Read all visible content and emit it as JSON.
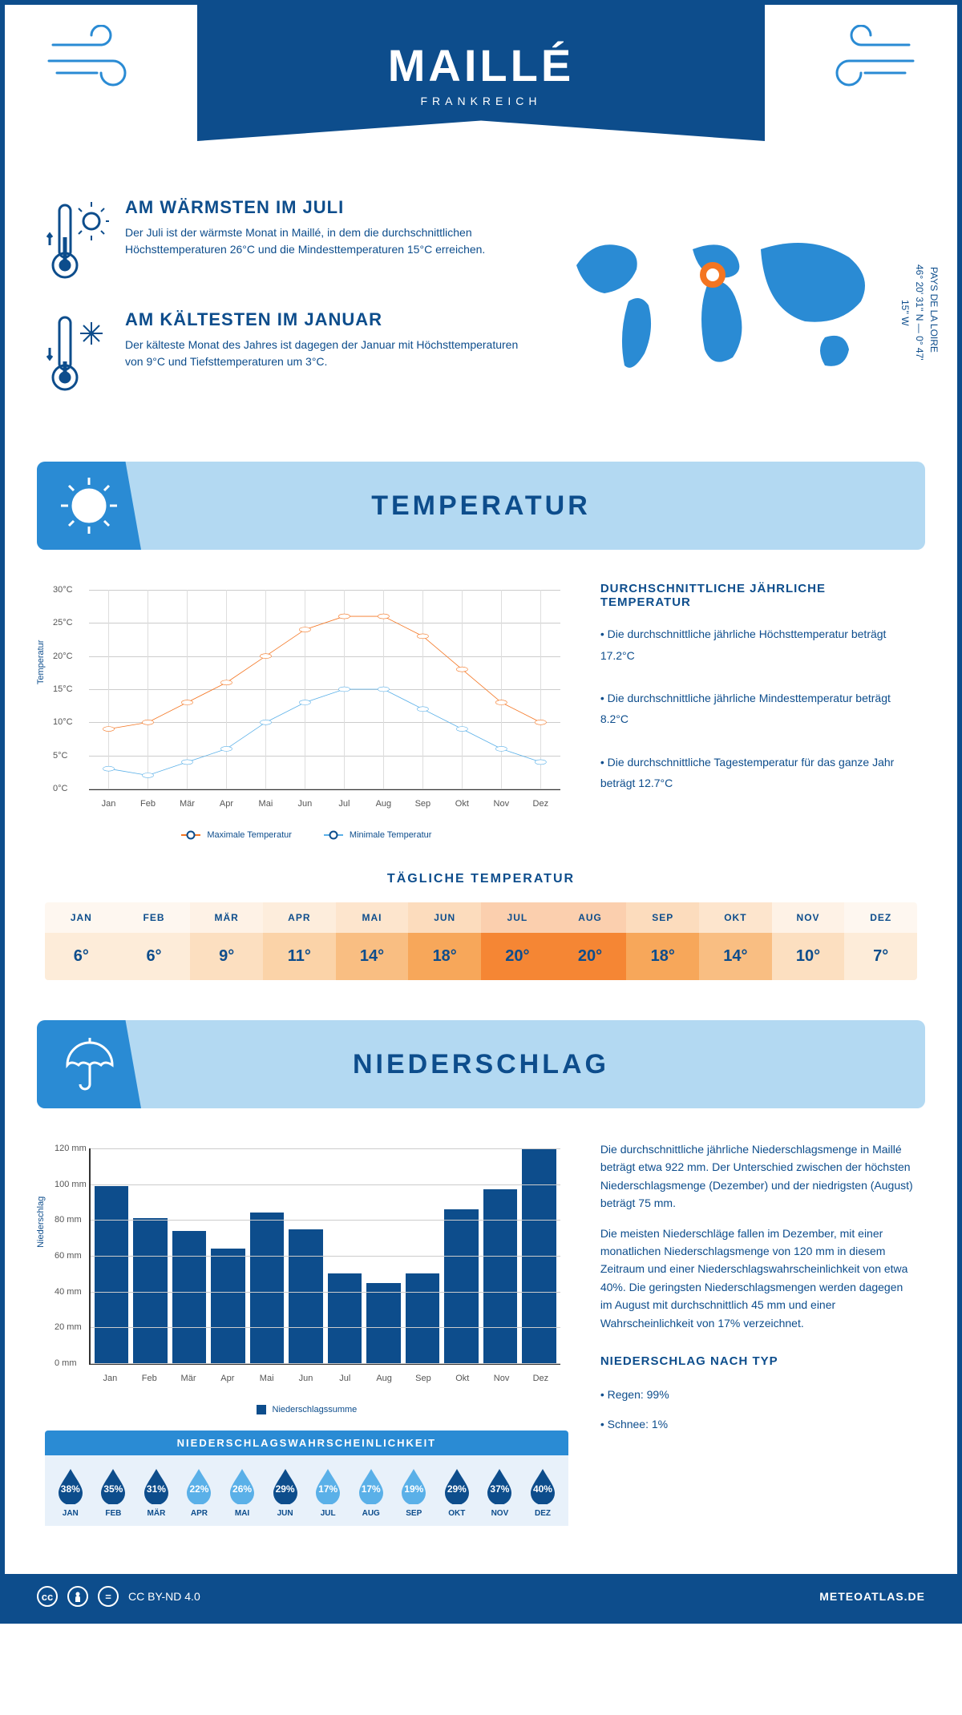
{
  "header": {
    "city": "MAILLÉ",
    "country": "FRANKREICH"
  },
  "colors": {
    "primary": "#0d4d8c",
    "accent": "#2a8bd4",
    "light": "#b3d9f2",
    "orange": "#f47521",
    "line_max": "#f47521",
    "line_min": "#5ab0e8"
  },
  "facts": {
    "warm_title": "AM WÄRMSTEN IM JULI",
    "warm_desc": "Der Juli ist der wärmste Monat in Maillé, in dem die durchschnittlichen Höchsttemperaturen 26°C und die Mindesttemperaturen 15°C erreichen.",
    "cold_title": "AM KÄLTESTEN IM JANUAR",
    "cold_desc": "Der kälteste Monat des Jahres ist dagegen der Januar mit Höchsttemperaturen von 9°C und Tiefsttemperaturen um 3°C."
  },
  "location": {
    "region": "PAYS DE LA LOIRE",
    "lat": "46° 20' 31'' N",
    "lon": "0° 47' 15'' W"
  },
  "temp_section": {
    "title": "TEMPERATUR",
    "side_title": "DURCHSCHNITTLICHE JÄHRLICHE TEMPERATUR",
    "bullet1": "• Die durchschnittliche jährliche Höchsttemperatur beträgt 17.2°C",
    "bullet2": "• Die durchschnittliche jährliche Mindesttemperatur beträgt 8.2°C",
    "bullet3": "• Die durchschnittliche Tagestemperatur für das ganze Jahr beträgt 12.7°C",
    "legend_max": "Maximale Temperatur",
    "legend_min": "Minimale Temperatur",
    "y_axis_label": "Temperatur",
    "ylim": [
      0,
      30
    ],
    "ytick_step": 5,
    "months": [
      "Jan",
      "Feb",
      "Mär",
      "Apr",
      "Mai",
      "Jun",
      "Jul",
      "Aug",
      "Sep",
      "Okt",
      "Nov",
      "Dez"
    ],
    "max_values": [
      9,
      10,
      13,
      16,
      20,
      24,
      26,
      26,
      23,
      18,
      13,
      10
    ],
    "min_values": [
      3,
      2,
      4,
      6,
      10,
      13,
      15,
      15,
      12,
      9,
      6,
      4
    ]
  },
  "daily_temp": {
    "title": "TÄGLICHE TEMPERATUR",
    "months": [
      "JAN",
      "FEB",
      "MÄR",
      "APR",
      "MAI",
      "JUN",
      "JUL",
      "AUG",
      "SEP",
      "OKT",
      "NOV",
      "DEZ"
    ],
    "values": [
      "6°",
      "6°",
      "9°",
      "11°",
      "14°",
      "18°",
      "20°",
      "20°",
      "18°",
      "14°",
      "10°",
      "7°"
    ],
    "cell_colors": [
      "#fdecd9",
      "#fdecd9",
      "#fcdfc0",
      "#fbd3a8",
      "#f9be82",
      "#f7a75a",
      "#f58634",
      "#f58634",
      "#f7a75a",
      "#f9be82",
      "#fcdfc0",
      "#fdecd9"
    ]
  },
  "precip_section": {
    "title": "NIEDERSCHLAG",
    "y_axis_label": "Niederschlag",
    "ylim": [
      0,
      120
    ],
    "ytick_step": 20,
    "months": [
      "Jan",
      "Feb",
      "Mär",
      "Apr",
      "Mai",
      "Jun",
      "Jul",
      "Aug",
      "Sep",
      "Okt",
      "Nov",
      "Dez"
    ],
    "values": [
      99,
      81,
      74,
      64,
      84,
      75,
      50,
      45,
      50,
      86,
      97,
      120
    ],
    "legend": "Niederschlagssumme",
    "text1": "Die durchschnittliche jährliche Niederschlagsmenge in Maillé beträgt etwa 922 mm. Der Unterschied zwischen der höchsten Niederschlagsmenge (Dezember) und der niedrigsten (August) beträgt 75 mm.",
    "text2": "Die meisten Niederschläge fallen im Dezember, mit einer monatlichen Niederschlagsmenge von 120 mm in diesem Zeitraum und einer Niederschlagswahrscheinlichkeit von etwa 40%. Die geringsten Niederschlagsmengen werden dagegen im August mit durchschnittlich 45 mm und einer Wahrscheinlichkeit von 17% verzeichnet.",
    "type_title": "NIEDERSCHLAG NACH TYP",
    "type1": "• Regen: 99%",
    "type2": "• Schnee: 1%"
  },
  "prob_section": {
    "title": "NIEDERSCHLAGSWAHRSCHEINLICHKEIT",
    "months": [
      "JAN",
      "FEB",
      "MÄR",
      "APR",
      "MAI",
      "JUN",
      "JUL",
      "AUG",
      "SEP",
      "OKT",
      "NOV",
      "DEZ"
    ],
    "values": [
      "38%",
      "35%",
      "31%",
      "22%",
      "26%",
      "29%",
      "17%",
      "17%",
      "19%",
      "29%",
      "37%",
      "40%"
    ],
    "raw": [
      38,
      35,
      31,
      22,
      26,
      29,
      17,
      17,
      19,
      29,
      37,
      40
    ],
    "color_high": "#0d4d8c",
    "color_low": "#5ab0e8",
    "threshold": 27
  },
  "footer": {
    "license": "CC BY-ND 4.0",
    "brand": "METEOATLAS.DE"
  }
}
